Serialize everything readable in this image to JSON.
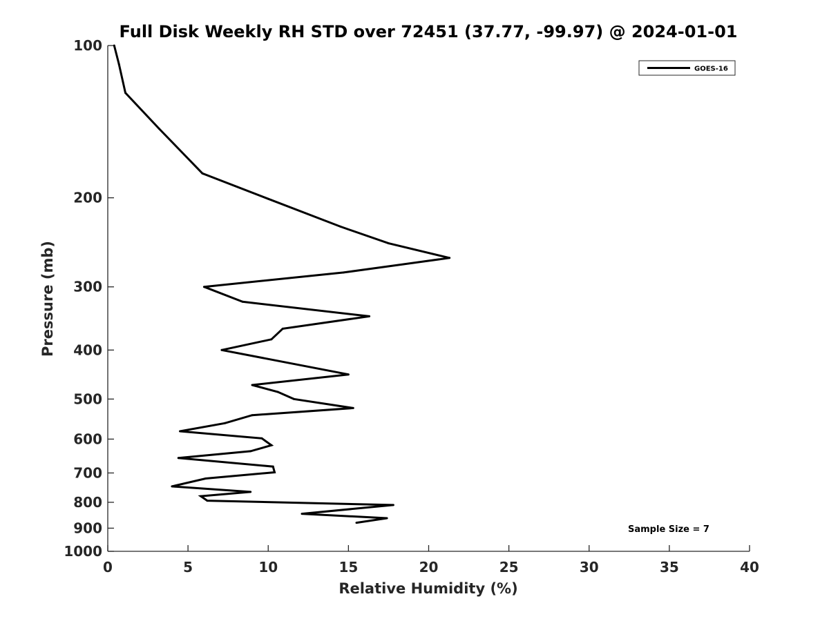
{
  "chart_data": {
    "type": "line",
    "title": "Full Disk Weekly RH STD over 72451 (37.77, -99.97) @ 2024-01-01",
    "xlabel": "Relative Humidity (%)",
    "ylabel": "Pressure (mb)",
    "xlim": [
      0,
      40
    ],
    "ylim": [
      100,
      1000
    ],
    "yscale": "log",
    "y_reversed": true,
    "grid": false,
    "x_ticks": [
      0,
      5,
      10,
      15,
      20,
      25,
      30,
      35,
      40
    ],
    "y_ticks": [
      100,
      200,
      300,
      400,
      500,
      600,
      700,
      800,
      900,
      1000
    ],
    "legend_position": "top-right",
    "series": [
      {
        "name": "GOES-16",
        "color": "#000000",
        "x": [
          0.4,
          0.7,
          1.1,
          3.2,
          5.9,
          10.0,
          14.5,
          17.5,
          21.3,
          14.7,
          6.0,
          8.4,
          16.3,
          10.9,
          10.2,
          7.1,
          15.0,
          9.0,
          10.6,
          11.6,
          15.3,
          9.0,
          7.3,
          4.5,
          9.6,
          10.2,
          8.9,
          4.4,
          10.3,
          10.4,
          6.1,
          4.0,
          8.9,
          5.8,
          6.2,
          17.8,
          12.1,
          17.4,
          15.5
        ],
        "y": [
          100,
          109,
          124,
          146,
          179,
          201,
          228,
          246,
          263,
          281,
          300,
          321,
          343,
          363,
          381,
          400,
          447,
          469,
          484,
          500,
          521,
          538,
          558,
          579,
          598,
          617,
          634,
          654,
          680,
          698,
          718,
          744,
          763,
          778,
          794,
          810,
          843,
          860,
          878
        ]
      }
    ],
    "annotations": [
      "Sample Size = 7"
    ]
  }
}
